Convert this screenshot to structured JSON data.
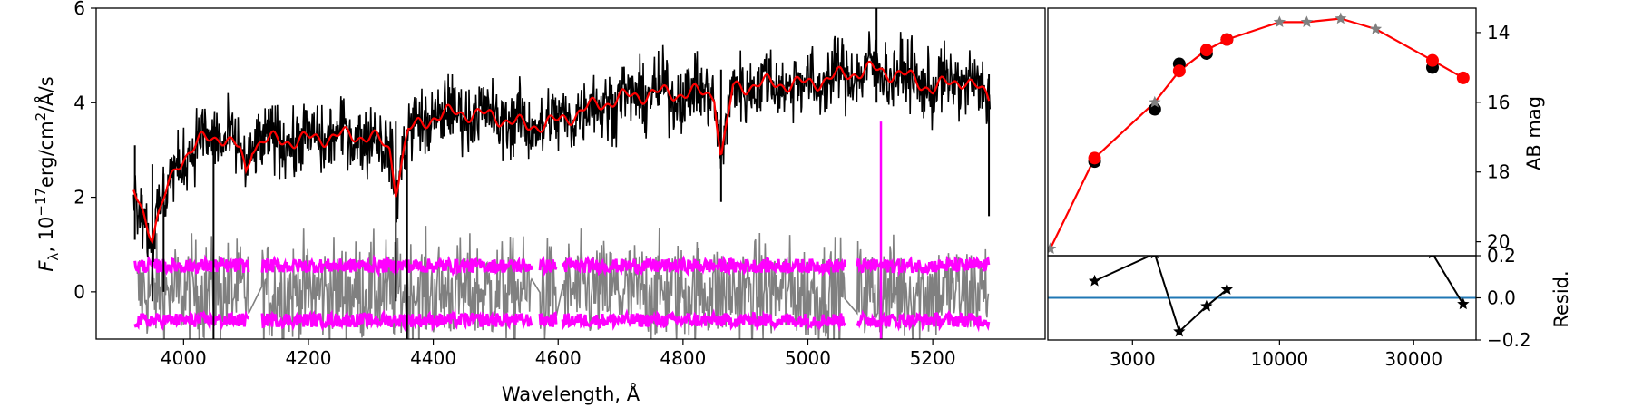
{
  "colors": {
    "spectrum": "#000000",
    "model": "#ff0000",
    "error_band": "#ff00ff",
    "residual_noise": "#808080",
    "zero_line": "#1f77b4",
    "synthetic": "#808080"
  },
  "chart_data": [
    {
      "type": "line",
      "xlabel": "Wavelength, Å",
      "ylabel_parts": {
        "main": "F",
        "sub": "λ",
        "rest1": ", 10",
        "sup1": "−17",
        "rest2": "erg/cm",
        "sup2": "2",
        "rest3": "/Å/s"
      },
      "xlim": [
        3860,
        5380
      ],
      "ylim": [
        -1,
        6
      ],
      "xticks": [
        4000,
        4200,
        4400,
        4600,
        4800,
        5000,
        5200
      ],
      "yticks": [
        0,
        2,
        4,
        6
      ],
      "gaps": [
        [
          4105,
          4125
        ],
        [
          4558,
          4570
        ],
        [
          4598,
          4607
        ],
        [
          5060,
          5078
        ]
      ],
      "series": [
        {
          "values_x": [
            3920,
            3935,
            3950,
            3970,
            3990,
            4010,
            4030,
            4060,
            4090,
            4100,
            4110,
            4130,
            4180,
            4250,
            4300,
            4330,
            4340,
            4360,
            4400,
            4440,
            4500,
            4550,
            4600,
            4650,
            4700,
            4750,
            4800,
            4850,
            4861,
            4880,
            4920,
            5000,
            5060,
            5100,
            5150,
            5200,
            5250,
            5290
          ],
          "values_y": [
            2.1,
            1.7,
            1.2,
            2.0,
            2.7,
            3.0,
            3.2,
            3.3,
            3.0,
            2.5,
            3.1,
            3.2,
            3.2,
            3.3,
            3.3,
            3.0,
            2.2,
            3.4,
            3.7,
            3.8,
            3.7,
            3.5,
            3.6,
            3.9,
            4.1,
            4.2,
            4.2,
            4.2,
            2.8,
            4.3,
            4.4,
            4.4,
            4.6,
            4.7,
            4.6,
            4.3,
            4.5,
            4.1
          ]
        }
      ]
    },
    {
      "type": "scatter",
      "ylabel": "AB mag",
      "xscale": "log",
      "yinvert": true,
      "xlim": [
        1500,
        50000
      ],
      "ylim": [
        20.4,
        13.3
      ],
      "yticks": [
        14,
        16,
        18,
        20
      ],
      "observed": [
        [
          2200,
          17.7
        ],
        [
          3600,
          16.2
        ],
        [
          4400,
          14.9
        ],
        [
          5500,
          14.6
        ],
        [
          6500,
          14.2
        ],
        [
          35000,
          15.0
        ]
      ],
      "model": [
        [
          1530,
          20.2
        ],
        [
          2200,
          17.6
        ],
        [
          3600,
          16.0
        ],
        [
          4400,
          15.1
        ],
        [
          5500,
          14.5
        ],
        [
          6500,
          14.2
        ],
        [
          10000,
          13.7
        ],
        [
          12500,
          13.7
        ],
        [
          16500,
          13.6
        ],
        [
          22000,
          13.9
        ],
        [
          35000,
          14.8
        ],
        [
          45000,
          15.3
        ]
      ],
      "synthetic": [
        [
          1530,
          20.2
        ],
        [
          3600,
          16.0
        ],
        [
          10000,
          13.7
        ],
        [
          12500,
          13.7
        ],
        [
          16500,
          13.6
        ],
        [
          22000,
          13.9
        ]
      ]
    },
    {
      "type": "line",
      "ylabel": "Resid.",
      "xscale": "log",
      "xlim": [
        1500,
        50000
      ],
      "ylim": [
        -0.2,
        0.2
      ],
      "xticks": [
        3000,
        10000,
        30000
      ],
      "xtick_labels": [
        "3000",
        "10000",
        "30000"
      ],
      "yticks": [
        -0.2,
        0.0,
        0.2
      ],
      "ytick_labels": [
        "−0.2",
        "0.0",
        "0.2"
      ],
      "points": [
        [
          2200,
          0.08
        ],
        [
          3600,
          0.21
        ],
        [
          4400,
          -0.16
        ],
        [
          5500,
          -0.04
        ],
        [
          6500,
          0.04
        ],
        [
          35000,
          0.21
        ],
        [
          45000,
          -0.03
        ]
      ]
    }
  ]
}
